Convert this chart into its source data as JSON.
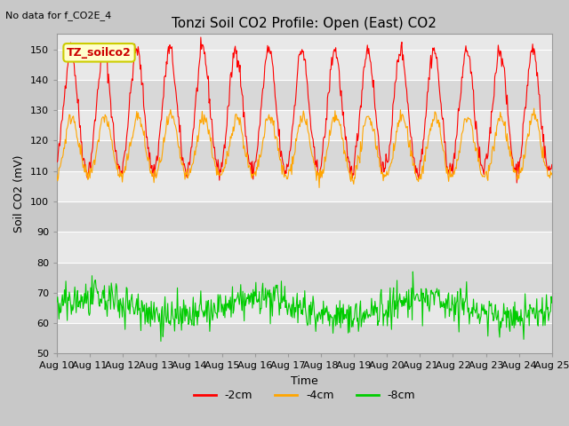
{
  "title": "Tonzi Soil CO2 Profile: Open (East) CO2",
  "no_data_label": "No data for f_CO2E_4",
  "xlabel": "Time",
  "ylabel": "Soil CO2 (mV)",
  "ylim": [
    50,
    155
  ],
  "yticks": [
    50,
    60,
    70,
    80,
    90,
    100,
    110,
    120,
    130,
    140,
    150
  ],
  "xtick_labels": [
    "Aug 10",
    "Aug 11",
    "Aug 12",
    "Aug 13",
    "Aug 14",
    "Aug 15",
    "Aug 16",
    "Aug 17",
    "Aug 18",
    "Aug 19",
    "Aug 20",
    "Aug 21",
    "Aug 22",
    "Aug 23",
    "Aug 24",
    "Aug 25"
  ],
  "legend_labels": [
    "-2cm",
    "-4cm",
    "-8cm"
  ],
  "line_colors": [
    "#ff0000",
    "#ffa500",
    "#00cc00"
  ],
  "inset_label": "TZ_soilco2",
  "inset_bg": "#ffffcc",
  "inset_border": "#cccc00",
  "fig_bg_color": "#c8c8c8",
  "band_colors": [
    "#d8d8d8",
    "#e8e8e8"
  ],
  "title_fontsize": 11,
  "axis_fontsize": 9,
  "tick_fontsize": 8,
  "legend_fontsize": 9,
  "n_points": 720,
  "seed": 42,
  "cycle_days": 1.0
}
